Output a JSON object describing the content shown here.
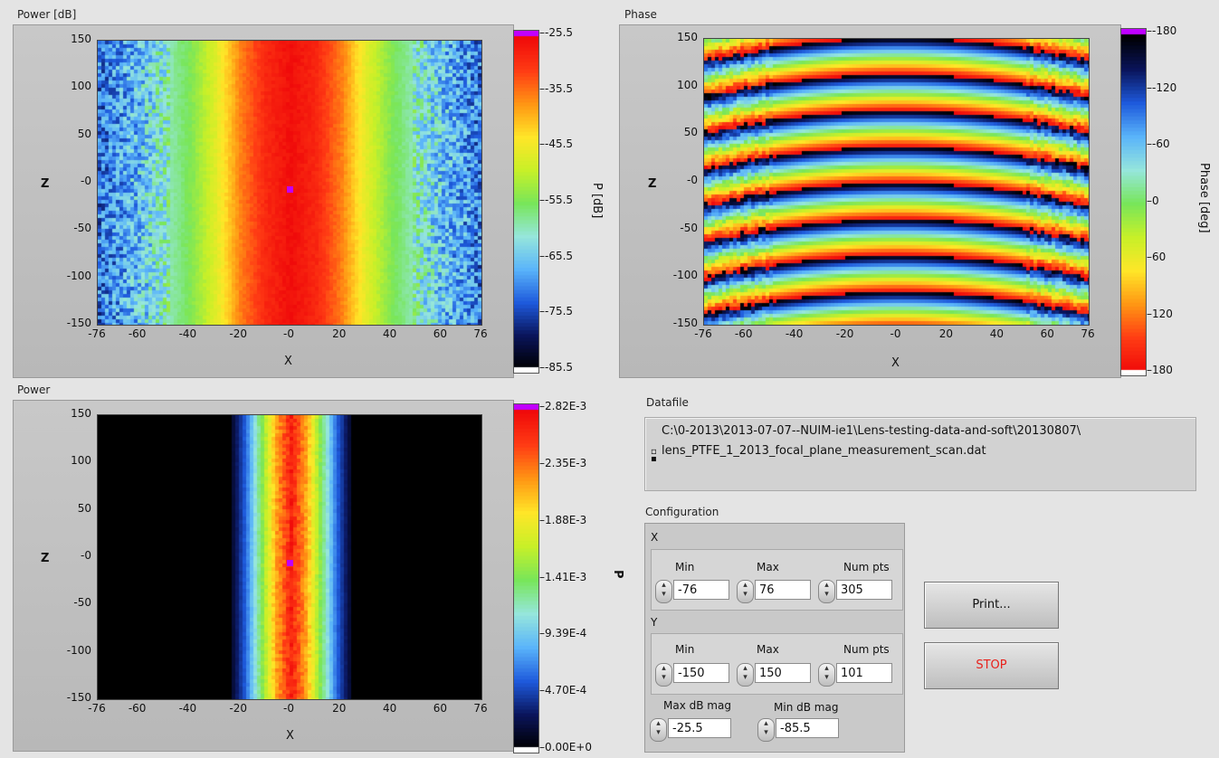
{
  "graphs": {
    "power_db": {
      "title": "Power [dB]",
      "xlabel": "X",
      "ylabel": "Z",
      "x_ticks": [
        "-76",
        "-60",
        "-40",
        "-20",
        "-0",
        "20",
        "40",
        "60",
        "76"
      ],
      "y_ticks": [
        "150",
        "100",
        "50",
        "-0",
        "-50",
        "-100",
        "-150"
      ],
      "scale_ticks": [
        "-25.5",
        "-35.5",
        "-45.5",
        "-55.5",
        "-65.5",
        "-75.5",
        "-85.5"
      ],
      "scale_title": "P [dB]"
    },
    "phase": {
      "title": "Phase",
      "xlabel": "X",
      "ylabel": "Z",
      "x_ticks": [
        "-76",
        "-60",
        "-40",
        "-20",
        "-0",
        "20",
        "40",
        "60",
        "76"
      ],
      "y_ticks": [
        "150",
        "100",
        "50",
        "-0",
        "-50",
        "-100",
        "-150"
      ],
      "scale_ticks": [
        "-180",
        "-120",
        "-60",
        "0",
        "60",
        "120",
        "180"
      ],
      "scale_title": "Phase [deg]"
    },
    "power": {
      "title": "Power",
      "xlabel": "X",
      "ylabel": "Z",
      "x_ticks": [
        "-76",
        "-60",
        "-40",
        "-20",
        "-0",
        "20",
        "40",
        "60",
        "76"
      ],
      "y_ticks": [
        "150",
        "100",
        "50",
        "-0",
        "-50",
        "-100",
        "-150"
      ],
      "scale_ticks": [
        "2.82E-3",
        "2.35E-3",
        "1.88E-3",
        "1.41E-3",
        "9.39E-4",
        "4.70E-4",
        "0.00E+0"
      ],
      "scale_title": "P"
    }
  },
  "chart_data": [
    {
      "type": "heatmap",
      "title": "Power [dB]",
      "xlabel": "X",
      "ylabel": "Z",
      "xlim": [
        -76,
        76
      ],
      "ylim": [
        -150,
        150
      ],
      "zlim": [
        -85.5,
        -25.5
      ],
      "colorbar_label": "P [dB]",
      "x_ticks": [
        -76,
        -60,
        -40,
        -20,
        0,
        20,
        40,
        60,
        76
      ],
      "y_ticks": [
        150,
        100,
        50,
        0,
        -50,
        -100,
        -150
      ],
      "colorbar_ticks": [
        -25.5,
        -35.5,
        -45.5,
        -55.5,
        -65.5,
        -75.5,
        -85.5
      ],
      "profile_x": [
        -76,
        -60,
        -40,
        -30,
        -20,
        -10,
        0,
        10,
        20,
        30,
        40,
        60,
        76
      ],
      "profile_db": [
        -72,
        -66,
        -55,
        -47,
        -36,
        -29,
        -26,
        -29,
        -36,
        -47,
        -55,
        -66,
        -72
      ]
    },
    {
      "type": "heatmap",
      "title": "Phase",
      "xlabel": "X",
      "ylabel": "Z",
      "xlim": [
        -76,
        76
      ],
      "ylim": [
        -150,
        150
      ],
      "zlim": [
        -180,
        180
      ],
      "colorbar_label": "Phase [deg]",
      "x_ticks": [
        -76,
        -60,
        -40,
        -20,
        0,
        20,
        40,
        60,
        76
      ],
      "y_ticks": [
        150,
        100,
        50,
        0,
        -50,
        -100,
        -150
      ],
      "colorbar_ticks": [
        -180,
        -120,
        -60,
        0,
        60,
        120,
        180
      ],
      "fringe_period_z": 38
    },
    {
      "type": "heatmap",
      "title": "Power",
      "xlabel": "X",
      "ylabel": "Z",
      "xlim": [
        -76,
        76
      ],
      "ylim": [
        -150,
        150
      ],
      "zlim": [
        0,
        0.00282
      ],
      "colorbar_label": "P",
      "x_ticks": [
        -76,
        -60,
        -40,
        -20,
        0,
        20,
        40,
        60,
        76
      ],
      "y_ticks": [
        150,
        100,
        50,
        0,
        -50,
        -100,
        -150
      ],
      "colorbar_ticks": [
        0.00282,
        0.00235,
        0.00188,
        0.00141,
        0.000939,
        0.00047,
        0
      ],
      "profile_x": [
        -24,
        -18,
        -12,
        -6,
        0,
        6,
        12,
        18,
        24
      ],
      "profile_p": [
        0.0001,
        0.0006,
        0.0014,
        0.0022,
        0.0027,
        0.0022,
        0.0014,
        0.0006,
        0.0001
      ]
    }
  ],
  "datafile": {
    "label": "Datafile",
    "path_line1": "C:\\0-2013\\2013-07-07--NUIM-ie1\\Lens-testing-data-and-soft\\20130807\\",
    "path_line2": "lens_PTFE_1_2013_focal_plane_measurement_scan.dat"
  },
  "configuration": {
    "label": "Configuration",
    "x": {
      "label": "X",
      "min_label": "Min",
      "max_label": "Max",
      "num_label": "Num pts",
      "min": "-76",
      "max": "76",
      "num": "305"
    },
    "y": {
      "label": "Y",
      "min_label": "Min",
      "max_label": "Max",
      "num_label": "Num pts",
      "min": "-150",
      "max": "150",
      "num": "101"
    },
    "max_db_label": "Max dB mag",
    "max_db": "-25.5",
    "min_db_label": "Min dB mag",
    "min_db": "-85.5"
  },
  "buttons": {
    "print": "Print...",
    "stop": "STOP"
  },
  "colors": {
    "stop_text": "#e8201a",
    "marker": "#c000ff"
  },
  "icons": {
    "spinner": "up-down-arrows-icon",
    "path_browse": "path-browse-icon"
  }
}
